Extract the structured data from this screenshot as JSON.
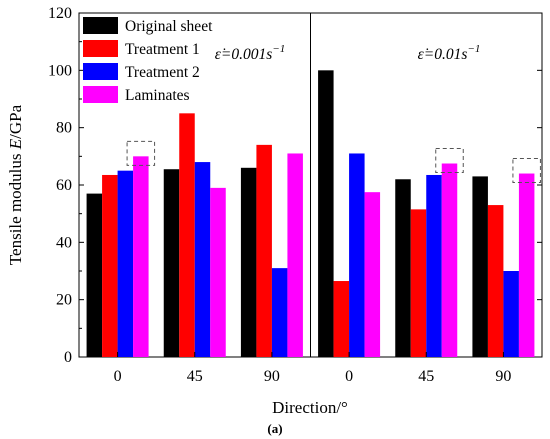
{
  "chart_data": {
    "type": "bar",
    "panel_label": "(a)",
    "xlabel": "Direction/°",
    "ylabel_prefix": "Tensile modulus ",
    "ylabel_var": "E",
    "ylabel_suffix": "/GPa",
    "ylim": [
      0,
      120
    ],
    "yticks": [
      0,
      20,
      40,
      60,
      80,
      100,
      120
    ],
    "grid": false,
    "legend_position": "top-left",
    "groups": [
      {
        "annotation_base": "ε̇=0.001s",
        "annotation_exp": "−1",
        "categories": [
          "0",
          "45",
          "90"
        ]
      },
      {
        "annotation_base": "ε̇=0.01s",
        "annotation_exp": "−1",
        "categories": [
          "0",
          "45",
          "90"
        ]
      }
    ],
    "categories": [
      "0",
      "45",
      "90",
      "0",
      "45",
      "90"
    ],
    "series": [
      {
        "name": "Original sheet",
        "color": "#000000",
        "values": [
          57,
          65.5,
          66,
          100,
          62,
          63
        ]
      },
      {
        "name": "Treatment 1",
        "color": "#ff0000",
        "values": [
          63.5,
          85,
          74,
          26.5,
          51.5,
          53
        ]
      },
      {
        "name": "Treatment 2",
        "color": "#0000ff",
        "values": [
          65,
          68,
          31,
          71,
          63.5,
          30
        ]
      },
      {
        "name": "Laminates",
        "color": "#ff00ff",
        "values": [
          70,
          59,
          71,
          57.5,
          67.5,
          64
        ]
      }
    ],
    "highlighted_bars": [
      {
        "category_index": 0,
        "series_index": 3
      },
      {
        "category_index": 4,
        "series_index": 3
      },
      {
        "category_index": 5,
        "series_index": 3
      }
    ]
  }
}
